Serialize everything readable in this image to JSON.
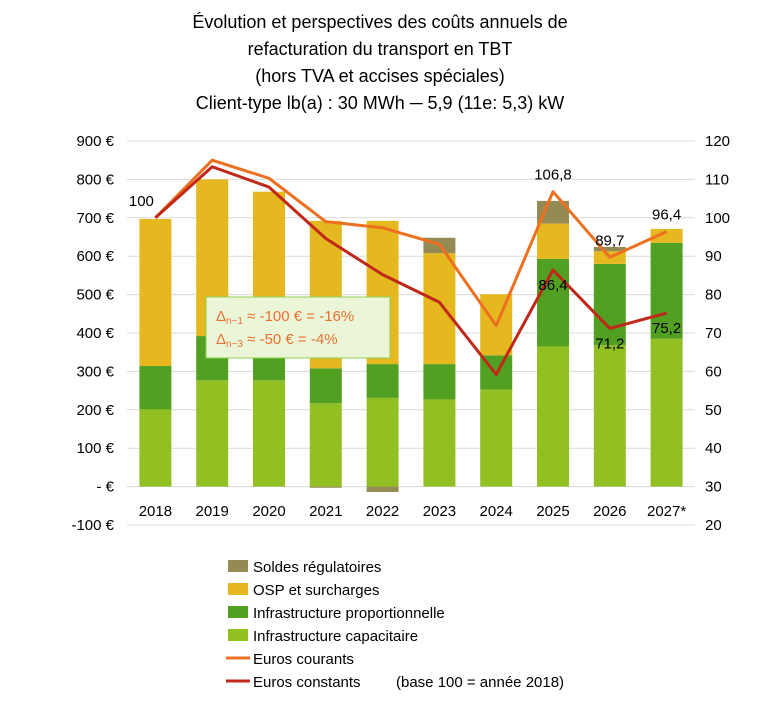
{
  "chart_data": {
    "type": "bar+line",
    "title": [
      "Évolution et perspectives des coûts annuels de",
      "refacturation du transport en TBT",
      "(hors TVA et accises spéciales)",
      "Client-type lb(a) : 30 MWh ─ 5,9 (11e: 5,3) kW"
    ],
    "categories": [
      "2018",
      "2019",
      "2020",
      "2021",
      "2022",
      "2023",
      "2024",
      "2025",
      "2026",
      "2027*"
    ],
    "left_axis": {
      "ylim": [
        -100,
        900
      ],
      "ticks": [
        "-100 €",
        "-  €",
        "100 €",
        "200 €",
        "300 €",
        "400 €",
        "500 €",
        "600 €",
        "700 €",
        "800 €",
        "900 €"
      ],
      "tick_values": [
        -100,
        0,
        100,
        200,
        300,
        400,
        500,
        600,
        700,
        800,
        900
      ]
    },
    "right_axis": {
      "ylim": [
        20,
        120
      ],
      "ticks": [
        "20",
        "30",
        "40",
        "50",
        "60",
        "70",
        "80",
        "90",
        "100",
        "110",
        "120"
      ],
      "tick_values": [
        20,
        30,
        40,
        50,
        60,
        70,
        80,
        90,
        100,
        110,
        120
      ]
    },
    "grid": true,
    "legend_position": "bottom",
    "bar_series": [
      {
        "name": "Infrastructure capacitaire",
        "color": "#92C023",
        "values": [
          201,
          277,
          277,
          217,
          231,
          227,
          253,
          365,
          368,
          385
        ]
      },
      {
        "name": "Infrastructure proportionnelle",
        "color": "#52A021",
        "values": [
          113,
          115,
          115,
          91,
          88,
          92,
          89,
          228,
          212,
          250
        ]
      },
      {
        "name": "OSP et surcharges",
        "color": "#E6B820",
        "values": [
          383,
          408,
          376,
          384,
          373,
          289,
          159,
          92,
          33,
          36
        ]
      },
      {
        "name": "Soldes régulatoires",
        "color": "#948A54",
        "values": [
          0,
          0,
          0,
          -3,
          -14,
          40,
          0,
          59,
          11,
          0
        ]
      }
    ],
    "line_series": [
      {
        "name": "Euros courants",
        "color": "#ED7020",
        "values": [
          100,
          115,
          110.3,
          99,
          97.4,
          93.1,
          71.9,
          106.8,
          89.7,
          96.4
        ],
        "labels": [
          "100",
          "",
          "",
          "",
          "",
          "",
          "",
          "106,8",
          "89,7",
          "96,4"
        ]
      },
      {
        "name": "Euros constants",
        "color": "#C0281A",
        "values": [
          100,
          113.3,
          108,
          94.6,
          85.2,
          78,
          59.2,
          86.4,
          71.2,
          75.2
        ],
        "labels": [
          "",
          "",
          "",
          "",
          "",
          "",
          "",
          "86,4",
          "71,2",
          "75,2"
        ]
      }
    ],
    "legend": [
      "Soldes régulatoires",
      "OSP et surcharges",
      "Infrastructure proportionnelle",
      "Infrastructure capacitaire",
      "Euros courants",
      "Euros constants"
    ],
    "legend_note": "(base 100 = année 2018)",
    "annotation": {
      "lines": [
        {
          "delta": "Δ",
          "sub": "n−1",
          "text": " ≈ -100 € = -16%"
        },
        {
          "delta": "Δ",
          "sub": "n−3",
          "text": " ≈ -50 € = -4%"
        }
      ],
      "fill": "#EBF5D7",
      "border": "#92D050",
      "text_color": "#E97132"
    }
  }
}
